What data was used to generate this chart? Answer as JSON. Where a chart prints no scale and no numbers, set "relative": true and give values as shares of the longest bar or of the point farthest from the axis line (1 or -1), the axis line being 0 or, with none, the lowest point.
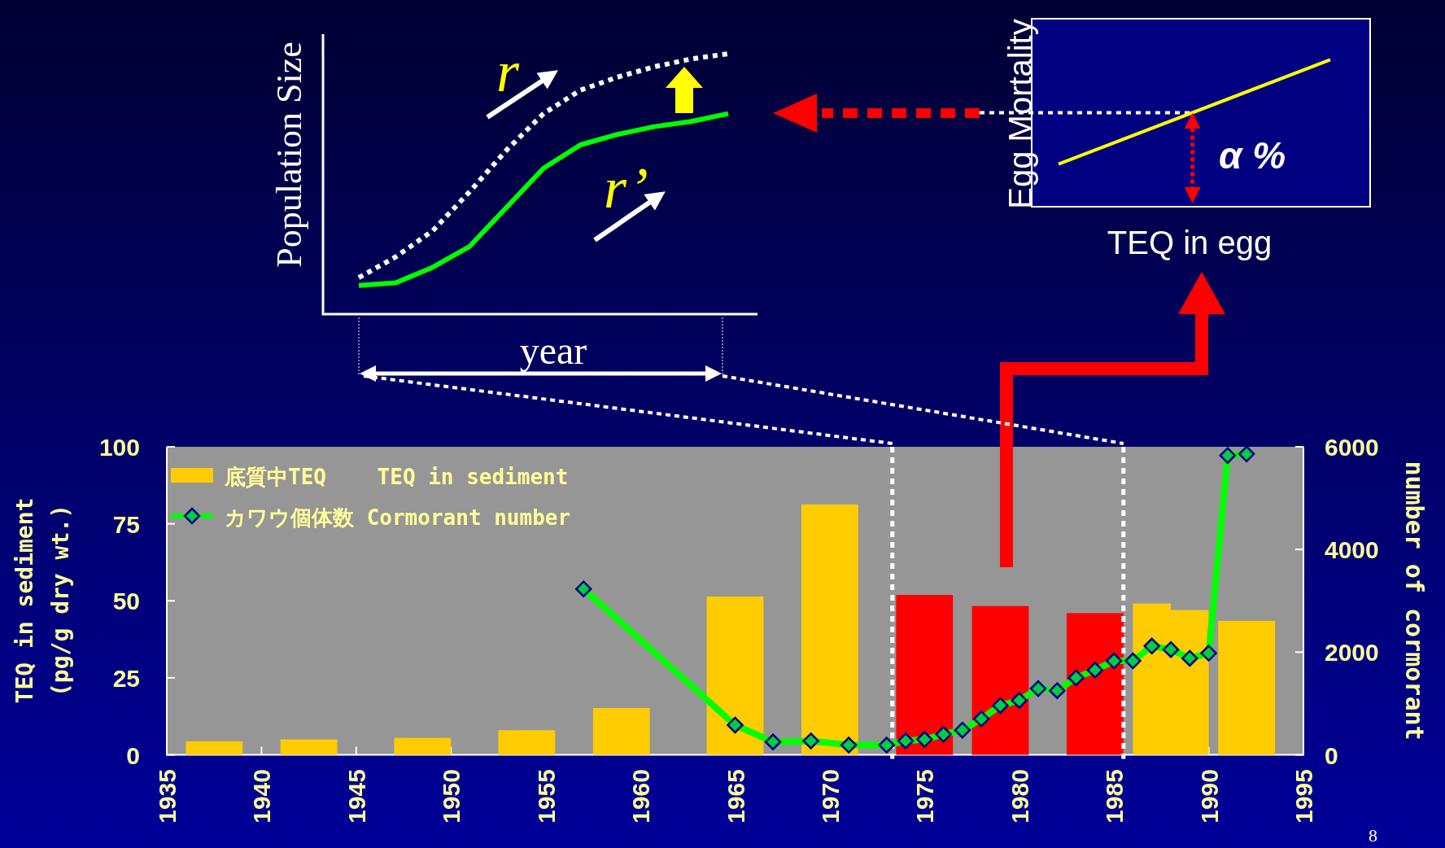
{
  "chart_data": [
    {
      "type": "line",
      "relative": true,
      "ylabel": "Population Size",
      "xlabel": "year",
      "categories": [
        null,
        null,
        null,
        null,
        null,
        null,
        null,
        null,
        null,
        null,
        null
      ],
      "series": [
        {
          "color": "#ffffff",
          "line_style": "dotted",
          "values": [
            0.14,
            0.22,
            0.32,
            0.47,
            0.63,
            0.77,
            0.86,
            0.91,
            0.95,
            0.98,
            1
          ]
        },
        {
          "color": "#00ff00",
          "line_style": "solid",
          "values": [
            0.11,
            0.12,
            0.18,
            0.26,
            0.41,
            0.56,
            0.65,
            0.69,
            0.72,
            0.74,
            0.77
          ]
        }
      ],
      "annotations": [
        "r",
        "r’"
      ]
    },
    {
      "type": "line",
      "relative": true,
      "xlabel": "TEQ in egg",
      "ylabel": "Egg Mortality",
      "categories": [
        null,
        null
      ],
      "series": [
        {
          "color": "#ffff00",
          "values": [
            0.29,
            1
          ]
        }
      ],
      "ref_lines": [
        {
          "axis": "y",
          "value": 0.64,
          "color": "#ffffff",
          "line_style": "dotted"
        }
      ],
      "annotations": [
        "α %"
      ]
    },
    {
      "type": "bar",
      "ylabel": "TEQ in sediment\n(pg/g dry wt.)",
      "y2label": "number of cormorant",
      "xlim": [
        1935,
        1995
      ],
      "xticks": [
        1935,
        1940,
        1945,
        1950,
        1955,
        1960,
        1965,
        1970,
        1975,
        1980,
        1985,
        1990,
        1995
      ],
      "ylim": [
        0,
        100
      ],
      "yticks": [
        0,
        25,
        50,
        75,
        100
      ],
      "y2lim": [
        0,
        6000
      ],
      "y2ticks": [
        0,
        2000,
        4000,
        6000
      ],
      "legend": "top left",
      "series": [
        {
          "name": "底質中TEQ    TEQ in sediment",
          "color": "#ffcc00",
          "x": [
            1937.5,
            1942.5,
            1948.5,
            1954,
            1959,
            1965,
            1970,
            1975,
            1979,
            1984,
            1987,
            1989,
            1992
          ],
          "values": [
            4.4,
            5.0,
            5.5,
            8.0,
            15.2,
            51.4,
            81.3,
            51.9,
            48.3,
            46.0,
            49.1,
            47.0,
            43.5
          ],
          "colors": [
            "#ffcc00",
            "#ffcc00",
            "#ffcc00",
            "#ffcc00",
            "#ffcc00",
            "#ffcc00",
            "#ffcc00",
            "#ff0000",
            "#ff0000",
            "#ff0000",
            "#ffcc00",
            "#ffcc00",
            "#ffcc00"
          ]
        },
        {
          "name": "カワウ個体数 Cormorant number",
          "type": "line",
          "axis": "y2",
          "color": "#00ff00",
          "marker": "diamond",
          "x": [
            1957,
            1965,
            1967,
            1969,
            1971,
            1973,
            1974,
            1975,
            1976,
            1977,
            1978,
            1979,
            1980,
            1981,
            1982,
            1983,
            1984,
            1985,
            1986,
            1987,
            1988,
            1989,
            1990,
            1991,
            1992
          ],
          "values": [
            3230,
            580,
            250,
            270,
            190,
            190,
            270,
            300,
            400,
            480,
            700,
            960,
            1060,
            1290,
            1250,
            1500,
            1650,
            1830,
            1830,
            2120,
            2050,
            1880,
            1980,
            5830,
            5860
          ]
        }
      ],
      "ref_lines": [
        {
          "axis": "x",
          "value": 1973.3,
          "color": "#ffffff",
          "line_style": "dotted"
        },
        {
          "axis": "x",
          "value": 1985.5,
          "color": "#ffffff",
          "line_style": "dotted"
        }
      ],
      "annotations": [
        "8"
      ]
    }
  ]
}
